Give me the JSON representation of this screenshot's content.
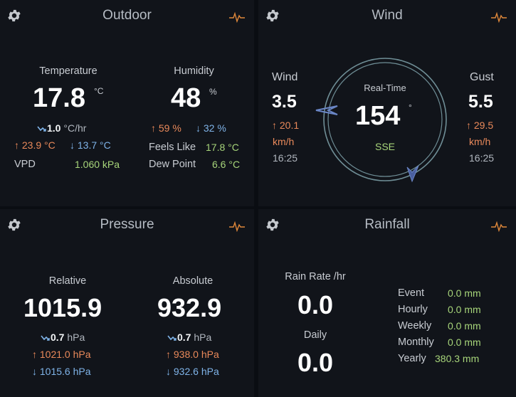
{
  "outdoor": {
    "title": "Outdoor",
    "temperature": {
      "label": "Temperature",
      "value": "17.8",
      "unit": "°C",
      "trend_icon": "trend-down-icon",
      "trend": "1.0",
      "trend_unit": "°C/hr",
      "high": "23.9 °C",
      "low": "13.7 °C"
    },
    "humidity": {
      "label": "Humidity",
      "value": "48",
      "unit": "%",
      "high": "59 %",
      "low": "32 %"
    },
    "vpd_label": "VPD",
    "vpd_value": "1.060 kPa",
    "feels_like_label": "Feels Like",
    "feels_like_value": "17.8 °C",
    "dew_point_label": "Dew Point",
    "dew_point_value": "6.6 °C"
  },
  "wind": {
    "title": "Wind",
    "wind_label": "Wind",
    "wind_value": "3.5",
    "wind_max": "20.1",
    "wind_unit": "km/h",
    "wind_time": "16:25",
    "gust_label": "Gust",
    "gust_value": "5.5",
    "gust_max": "29.5",
    "gust_unit": "km/h",
    "gust_time": "16:25",
    "realtime_label": "Real-Time",
    "direction_deg": "154",
    "direction_unit": "°",
    "direction_name": "SSE"
  },
  "pressure": {
    "title": "Pressure",
    "relative": {
      "label": "Relative",
      "value": "1015.9",
      "trend": "0.7",
      "trend_unit": "hPa",
      "high": "1021.0 hPa",
      "low": "1015.6 hPa"
    },
    "absolute": {
      "label": "Absolute",
      "value": "932.9",
      "trend": "0.7",
      "trend_unit": "hPa",
      "high": "938.0 hPa",
      "low": "932.6 hPa"
    }
  },
  "rainfall": {
    "title": "Rainfall",
    "rate_label": "Rain Rate /hr",
    "rate_value": "0.0",
    "daily_label": "Daily",
    "daily_value": "0.0",
    "stats": [
      {
        "label": "Event",
        "value": "0.0 mm"
      },
      {
        "label": "Hourly",
        "value": "0.0 mm"
      },
      {
        "label": "Weekly",
        "value": "0.0 mm"
      },
      {
        "label": "Monthly",
        "value": "0.0 mm"
      },
      {
        "label": "Yearly",
        "value": "380.3 mm"
      }
    ]
  },
  "colors": {
    "high": "#e9895a",
    "low": "#7fb3e8",
    "value_green": "#a7d57a",
    "pulse_icon": "#e0883a",
    "compass_ring": "#6f8e96"
  }
}
